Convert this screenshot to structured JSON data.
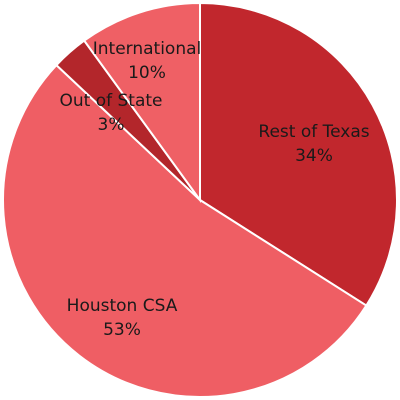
{
  "chart_data": {
    "type": "pie",
    "title": "",
    "slices": [
      {
        "label": "Rest of Texas",
        "value": 34,
        "display": "34%",
        "color": "#c1272d"
      },
      {
        "label": "Houston CSA",
        "value": 53,
        "display": "53%",
        "color": "#ef5e64"
      },
      {
        "label": "Out of State",
        "value": 3,
        "display": "3%",
        "color": "#b3262b"
      },
      {
        "label": "International",
        "value": 10,
        "display": "10%",
        "color": "#ef6065"
      }
    ]
  }
}
